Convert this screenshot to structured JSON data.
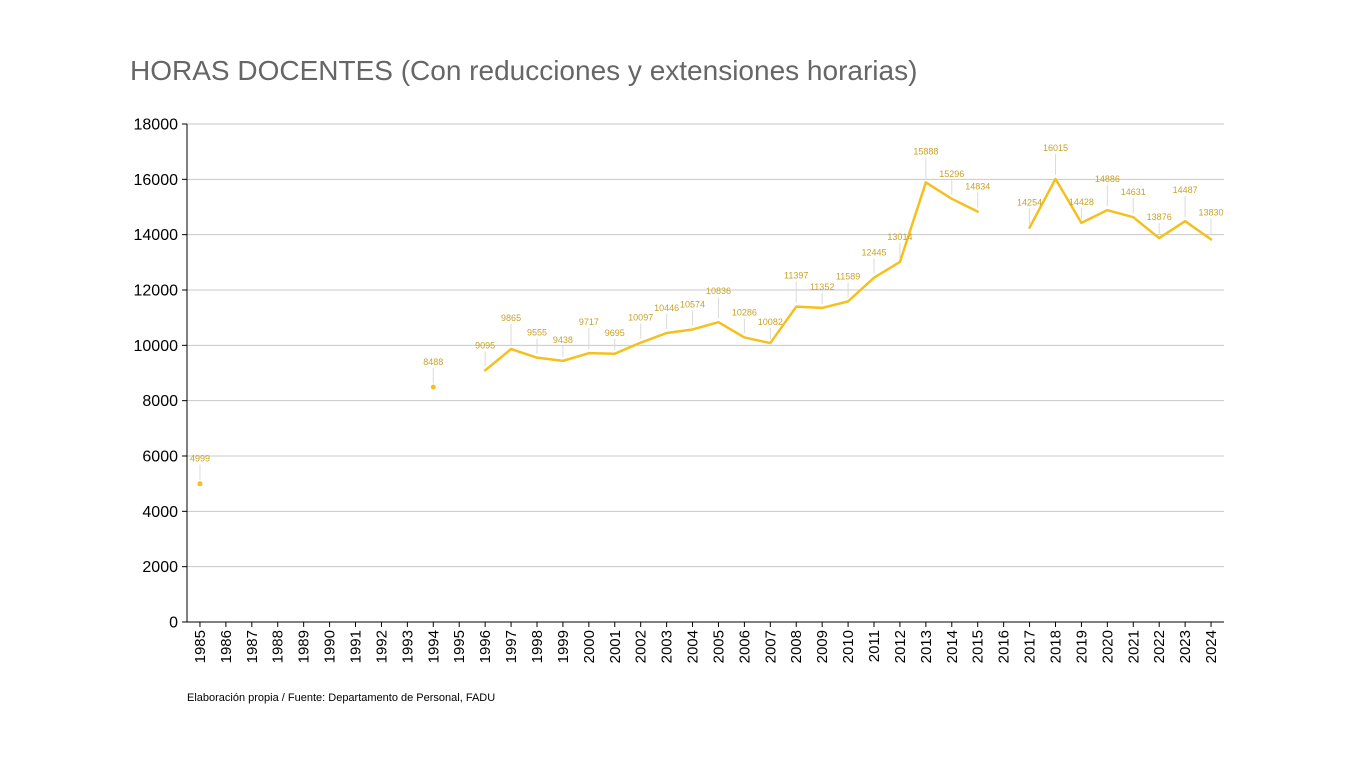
{
  "chart_data": {
    "type": "line",
    "title": "HORAS DOCENTES (Con reducciones y extensiones horarias)",
    "xlabel": "",
    "ylabel": "",
    "ylim": [
      0,
      18000
    ],
    "yticks": [
      0,
      2000,
      4000,
      6000,
      8000,
      10000,
      12000,
      14000,
      16000,
      18000
    ],
    "grid": true,
    "legend": "none",
    "categories": [
      "1985",
      "1986",
      "1987",
      "1988",
      "1989",
      "1990",
      "1991",
      "1992",
      "1993",
      "1994",
      "1995",
      "1996",
      "1997",
      "1998",
      "1999",
      "2000",
      "2001",
      "2002",
      "2003",
      "2004",
      "2005",
      "2006",
      "2007",
      "2008",
      "2009",
      "2010",
      "2011",
      "2012",
      "2013",
      "2014",
      "2015",
      "2016",
      "2017",
      "2018",
      "2019",
      "2020",
      "2021",
      "2022",
      "2023",
      "2024"
    ],
    "series": [
      {
        "color": "#F5C01E",
        "values": [
          4999,
          null,
          null,
          null,
          null,
          null,
          null,
          null,
          null,
          8488,
          null,
          9095,
          9865,
          9555,
          9438,
          9717,
          9695,
          10097,
          10446,
          10574,
          10836,
          10286,
          10082,
          11397,
          11352,
          11589,
          12445,
          13014,
          15888,
          15296,
          14834,
          null,
          14254,
          16015,
          14428,
          14886,
          14631,
          13876,
          14487,
          13830
        ]
      }
    ]
  },
  "footnote": "Elaboración propia / Fuente: Departamento de Personal, FADU",
  "colors": {
    "line": "#F5C01E",
    "label": "#C9A227",
    "grid": "#C8C8C8",
    "axis": "#000000"
  }
}
